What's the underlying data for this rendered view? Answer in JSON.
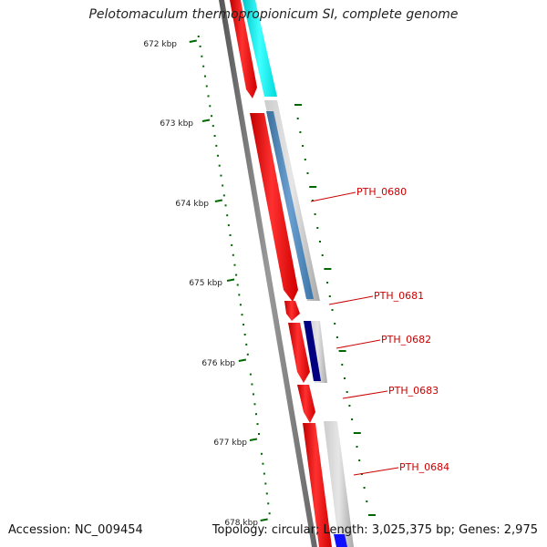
{
  "title": "Pelotomaculum thermopropionicum SI, complete genome",
  "footer": {
    "accession_label": "Accession:",
    "accession": "NC_009454",
    "topology_label": "Topology:",
    "topology": "circular",
    "length_label": "Length:",
    "length": "3,025,375 bp",
    "genes_label": "Genes:",
    "genes": "2,975"
  },
  "ruler_labels": [
    "672 kbp",
    "673 kbp",
    "674 kbp",
    "675 kbp",
    "676 kbp",
    "677 kbp",
    "678 kbp"
  ],
  "gene_labels": [
    "PTH_0680",
    "PTH_0681",
    "PTH_0682",
    "PTH_0683",
    "PTH_0684"
  ],
  "colors": {
    "gene_forward": "#ff0000",
    "label": "#cc0000",
    "ruler_tick": "#006600",
    "backbone": "#777777",
    "cyan_feature": "#00e5e5",
    "steelblue_feature": "#4682b4",
    "navy_feature": "#000080",
    "blue_feature": "#0000ff",
    "gray_feature": "#bbbbbb"
  }
}
